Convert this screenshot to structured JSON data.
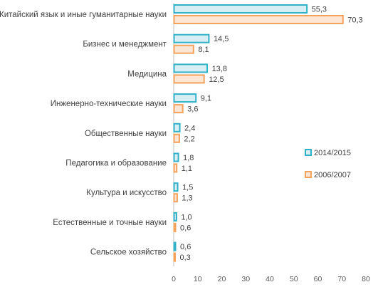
{
  "chart_data": {
    "type": "bar",
    "orientation": "horizontal",
    "title": "",
    "xlabel": "",
    "ylabel": "",
    "xlim": [
      0,
      80
    ],
    "x_ticks": [
      0,
      10,
      20,
      30,
      40,
      50,
      60,
      70,
      80
    ],
    "grid": false,
    "legend_position": "right",
    "categories": [
      "Китайский язык и иные гуманитарные науки",
      "Бизнес и менеджмент",
      "Медицина",
      "Инженерно-технические науки",
      "Общественные науки",
      "Педагогика и образование",
      "Культура и искусство",
      "Естественные и точные науки",
      "Сельское хозяйство"
    ],
    "series": [
      {
        "name": "2014/2015",
        "color": "#31b1c8",
        "fill": "#d7eff4",
        "values": [
          55.3,
          14.5,
          13.8,
          9.1,
          2.4,
          1.8,
          1.5,
          1.0,
          0.6
        ],
        "labels": [
          "55,3",
          "14,5",
          "13,8",
          "9,1",
          "2,4",
          "1,8",
          "1,5",
          "1,0",
          "0,6"
        ]
      },
      {
        "name": "2006/2007",
        "color": "#f5a25d",
        "fill": "#fde6d4",
        "values": [
          70.3,
          8.1,
          12.5,
          3.6,
          2.2,
          1.1,
          1.3,
          0.6,
          0.3
        ],
        "labels": [
          "70,3",
          "8,1",
          "12,5",
          "3,6",
          "2,2",
          "1,1",
          "1,3",
          "0,6",
          "0,3"
        ]
      }
    ]
  }
}
